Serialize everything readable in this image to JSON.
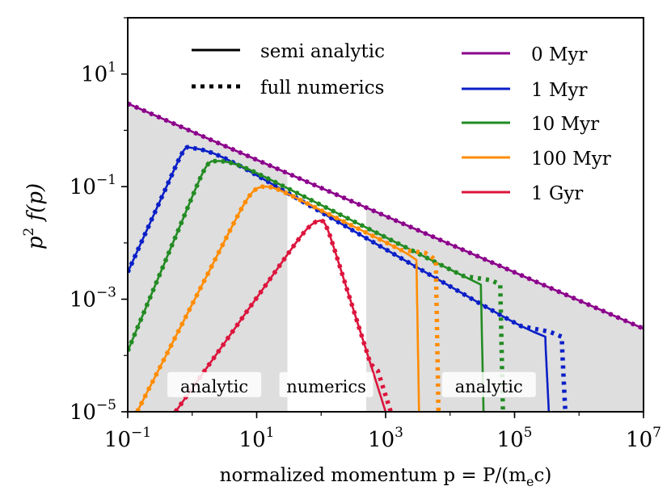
{
  "chart_data": {
    "type": "line",
    "xlabel": "normalized momentum p = P/(m",
    "xlabel_sub": "e",
    "xlabel_tail": "c)",
    "ylabel": "p",
    "ylabel_sup": "2",
    "ylabel_func": " f(p)",
    "x_scale": "log",
    "y_scale": "log",
    "xlim": [
      0.1,
      10000000
    ],
    "ylim": [
      1e-05,
      100
    ],
    "x_ticks": [
      {
        "value": 0.1,
        "base": "10",
        "exp": "−1"
      },
      {
        "value": 10,
        "base": "10",
        "exp": "1"
      },
      {
        "value": 1000,
        "base": "10",
        "exp": "3"
      },
      {
        "value": 100000,
        "base": "10",
        "exp": "5"
      },
      {
        "value": 10000000,
        "base": "10",
        "exp": "7"
      }
    ],
    "y_ticks": [
      {
        "value": 1e-05,
        "base": "10",
        "exp": "−5"
      },
      {
        "value": 0.001,
        "base": "10",
        "exp": "−3"
      },
      {
        "value": 0.1,
        "base": "10",
        "exp": "−1"
      },
      {
        "value": 10,
        "base": "10",
        "exp": "1"
      }
    ],
    "shaded_regions": [
      {
        "x_from": 0.1,
        "x_to": 30,
        "color": "#dedede"
      },
      {
        "x_from": 500,
        "x_to": 10000000,
        "color": "#dedede"
      }
    ],
    "region_labels": [
      {
        "text": "analytic",
        "x": 2.2,
        "y": 2.8e-05,
        "color": "#111111"
      },
      {
        "text": "numerics",
        "x": 120,
        "y": 2.8e-05,
        "color": "#888888"
      },
      {
        "text": "analytic",
        "x": 40000,
        "y": 2.8e-05,
        "color": "#111111"
      }
    ],
    "legend_styles": [
      {
        "label": "semi analytic",
        "style": "solid"
      },
      {
        "label": "full numerics",
        "style": "dotted"
      }
    ],
    "series": [
      {
        "name": "0 Myr",
        "color": "#8B008B",
        "ramp_rise": 0,
        "x_peak": 0.1,
        "p_cut": 100000000,
        "cut_drop": 100,
        "dot_shift": 1.0,
        "points": [
          [
            0.1,
            3.0
          ],
          [
            10000000,
            0.0003
          ]
        ]
      },
      {
        "name": "1 Myr",
        "color": "#0a1fc7",
        "ramp_rise": 2.2,
        "x_peak": 0.9,
        "p_cut": 300000,
        "cut_drop": 6.5,
        "dot_shift": 1.8,
        "points": [
          [
            0.1,
            0.003
          ],
          [
            0.9,
            0.78
          ],
          [
            300000,
            0.00018
          ],
          [
            340000,
            1e-05
          ]
        ]
      },
      {
        "name": "10 Myr",
        "color": "#228B22",
        "ramp_rise": 2.3,
        "x_peak": 2.0,
        "p_cut": 30000,
        "cut_drop": 7.5,
        "dot_shift": 2.0,
        "points": [
          [
            0.1,
            0.00012
          ],
          [
            2.0,
            0.44
          ],
          [
            30000,
            0.0018
          ],
          [
            33000,
            1e-05
          ]
        ]
      },
      {
        "name": "100 Myr",
        "color": "#FF8C00",
        "ramp_rise": 2.3,
        "x_peak": 10,
        "p_cut": 3000,
        "cut_drop": 6.0,
        "dot_shift": 2.0,
        "points": [
          [
            0.14,
            1e-05
          ],
          [
            10,
            0.14
          ],
          [
            3000,
            0.0055
          ],
          [
            3300,
            1e-05
          ]
        ]
      },
      {
        "name": "1 Gyr",
        "color": "#DC143C",
        "ramp_rise": 1.4,
        "x_peak": 100,
        "p_cut": 1000,
        "cut_drop": 3.5,
        "dot_shift": 1.2,
        "points": [
          [
            0.55,
            1e-05
          ],
          [
            100,
            0.043
          ],
          [
            1000,
            1e-05
          ]
        ]
      }
    ]
  }
}
